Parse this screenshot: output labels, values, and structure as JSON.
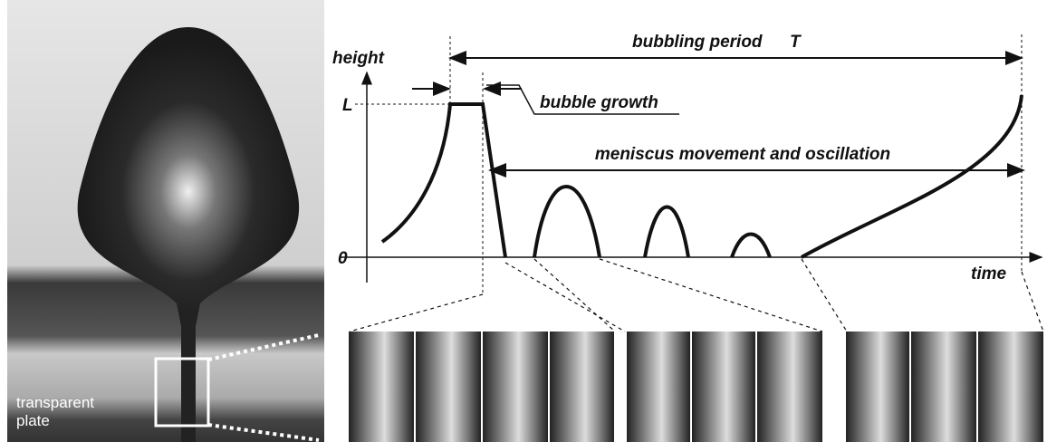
{
  "photo": {
    "label": "transparent\nplate"
  },
  "diagram": {
    "y_axis_label": "height",
    "x_axis_label": "time",
    "level_L": "L",
    "level_0": "0",
    "period_label": "bubbling period",
    "period_symbol": "T",
    "growth_label": "bubble growth",
    "meniscus_label": "meniscus movement and oscillation"
  }
}
